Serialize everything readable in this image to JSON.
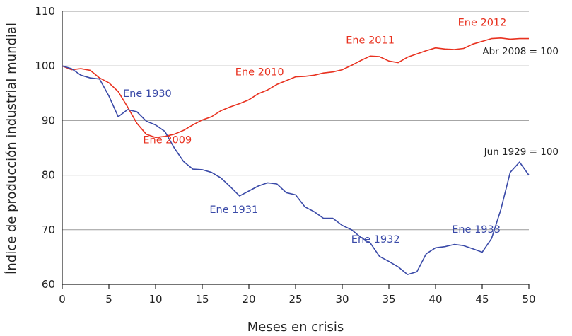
{
  "chart_data": {
    "type": "line",
    "xlabel": "Meses en crisis",
    "ylabel": "Índice de producción industrial mundial",
    "xlim": [
      0,
      50
    ],
    "ylim": [
      60,
      110
    ],
    "x_ticks": [
      0,
      5,
      10,
      15,
      20,
      25,
      30,
      35,
      40,
      45,
      50
    ],
    "y_ticks": [
      60,
      70,
      80,
      90,
      100,
      110
    ],
    "grid": "horizontal",
    "series": [
      {
        "color": "#e8311f",
        "x": [
          0,
          1,
          2,
          3,
          4,
          5,
          6,
          7,
          8,
          9,
          10,
          11,
          12,
          13,
          14,
          15,
          16,
          17,
          18,
          19,
          20,
          21,
          22,
          23,
          24,
          25,
          26,
          27,
          28,
          29,
          30,
          31,
          32,
          33,
          34,
          35,
          36,
          37,
          38,
          39,
          40,
          41,
          42,
          43,
          44,
          45,
          46,
          47,
          48,
          49,
          50
        ],
        "y": [
          100,
          99.3,
          99.5,
          99.2,
          97.8,
          96.9,
          95.3,
          92.5,
          89.5,
          87.5,
          86.9,
          87.1,
          87.5,
          88.2,
          89.2,
          90.1,
          90.7,
          91.8,
          92.5,
          93.1,
          93.8,
          94.9,
          95.6,
          96.6,
          97.3,
          98.0,
          98.1,
          98.3,
          98.7,
          98.9,
          99.3,
          100.1,
          101.0,
          101.8,
          101.7,
          100.9,
          100.6,
          101.6,
          102.2,
          102.8,
          103.3,
          103.1,
          103.0,
          103.2,
          104.0,
          104.5,
          105.0,
          105.1,
          104.9,
          105.0,
          105.0
        ]
      },
      {
        "color": "#3a4aa8",
        "x": [
          0,
          1,
          2,
          3,
          4,
          5,
          6,
          7,
          8,
          9,
          10,
          11,
          12,
          13,
          14,
          15,
          16,
          17,
          18,
          19,
          20,
          21,
          22,
          23,
          24,
          25,
          26,
          27,
          28,
          29,
          30,
          31,
          32,
          33,
          34,
          35,
          36,
          37,
          38,
          39,
          40,
          41,
          42,
          43,
          44,
          45,
          46,
          47,
          48,
          49,
          50
        ],
        "y": [
          100,
          99.5,
          98.3,
          97.8,
          97.6,
          94.5,
          90.7,
          92.0,
          91.6,
          89.9,
          89.2,
          88.0,
          85.0,
          82.5,
          81.1,
          81.0,
          80.5,
          79.5,
          77.9,
          76.2,
          77.1,
          78.0,
          78.6,
          78.4,
          76.8,
          76.4,
          74.2,
          73.3,
          72.1,
          72.1,
          70.8,
          70.0,
          68.6,
          67.6,
          65.1,
          64.2,
          63.2,
          61.8,
          62.3,
          65.6,
          66.7,
          66.9,
          67.3,
          67.1,
          66.5,
          65.9,
          68.4,
          73.7,
          80.5,
          82.4,
          80.0
        ]
      }
    ],
    "annotations": [
      {
        "text": "Ene 2009",
        "x": 9,
        "y": 89.5,
        "color": "#e8311f"
      },
      {
        "text": "Ene 2010",
        "x": 21,
        "y": 94.9,
        "color": "#e8311f"
      },
      {
        "text": "Ene 2011",
        "x": 33,
        "y": 101.8,
        "color": "#e8311f"
      },
      {
        "text": "Ene 2012",
        "x": 45,
        "y": 104.5,
        "color": "#e8311f"
      },
      {
        "text": "Ene 1930",
        "x": 7,
        "y": 92.0,
        "color": "#3a4aa8"
      },
      {
        "text": "Ene 1931",
        "x": 19,
        "y": 76.2,
        "color": "#3a4aa8"
      },
      {
        "text": "Ene 1932",
        "x": 31,
        "y": 70.0,
        "color": "#3a4aa8"
      },
      {
        "text": "Ene 1933",
        "x": 43,
        "y": 67.1,
        "color": "#3a4aa8"
      }
    ],
    "base_notes": [
      {
        "text": "Abr 2008 = 100",
        "color": "#222222"
      },
      {
        "text": "Jun 1929 = 100",
        "color": "#222222"
      }
    ]
  }
}
